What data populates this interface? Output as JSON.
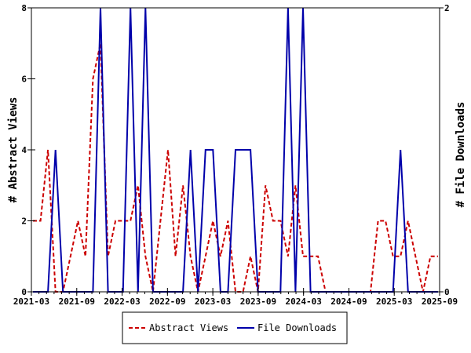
{
  "chart_data": {
    "type": "line",
    "ylabel": "# Abstract Views",
    "y2label": "# File Downloads",
    "x_tick_labels": [
      "2021-03",
      "2021-09",
      "2022-03",
      "2022-09",
      "2023-03",
      "2023-09",
      "2024-03",
      "2024-09",
      "2025-03",
      "2025-09"
    ],
    "ylim": [
      0,
      8
    ],
    "y_ticks": [
      "0",
      "2",
      "4",
      "6",
      "8"
    ],
    "y2lim": [
      0,
      2
    ],
    "y2_ticks": [
      "0",
      "2"
    ],
    "legend_position": "bottom-center",
    "grid": false,
    "series": [
      {
        "name": "Abstract Views",
        "axis": "left",
        "color": "#cc0000",
        "dash": true,
        "values": [
          2,
          2,
          4,
          0,
          0,
          1,
          2,
          1,
          6,
          7,
          1,
          2,
          2,
          2,
          3,
          1,
          0,
          2,
          4,
          1,
          3,
          1,
          0,
          1,
          2,
          1,
          2,
          0,
          0,
          1,
          0,
          3,
          2,
          2,
          1,
          3,
          1,
          1,
          1,
          0,
          0,
          0,
          0,
          0,
          0,
          0,
          2,
          2,
          1,
          1,
          2,
          1,
          0,
          1,
          1
        ]
      },
      {
        "name": "File Downloads",
        "axis": "right",
        "color": "#0000aa",
        "dash": false,
        "values": [
          0,
          0,
          0,
          1,
          0,
          0,
          0,
          0,
          0,
          2,
          0,
          0,
          0,
          2,
          0,
          2,
          0,
          0,
          0,
          0,
          0,
          1,
          0,
          1,
          1,
          0,
          0,
          1,
          1,
          1,
          0,
          0,
          0,
          0,
          2,
          0,
          2,
          0,
          0,
          0,
          0,
          0,
          0,
          0,
          0,
          0,
          0,
          0,
          0,
          1,
          0,
          0,
          0,
          0,
          0
        ]
      }
    ],
    "legend": [
      "Abstract Views",
      "File Downloads"
    ]
  }
}
